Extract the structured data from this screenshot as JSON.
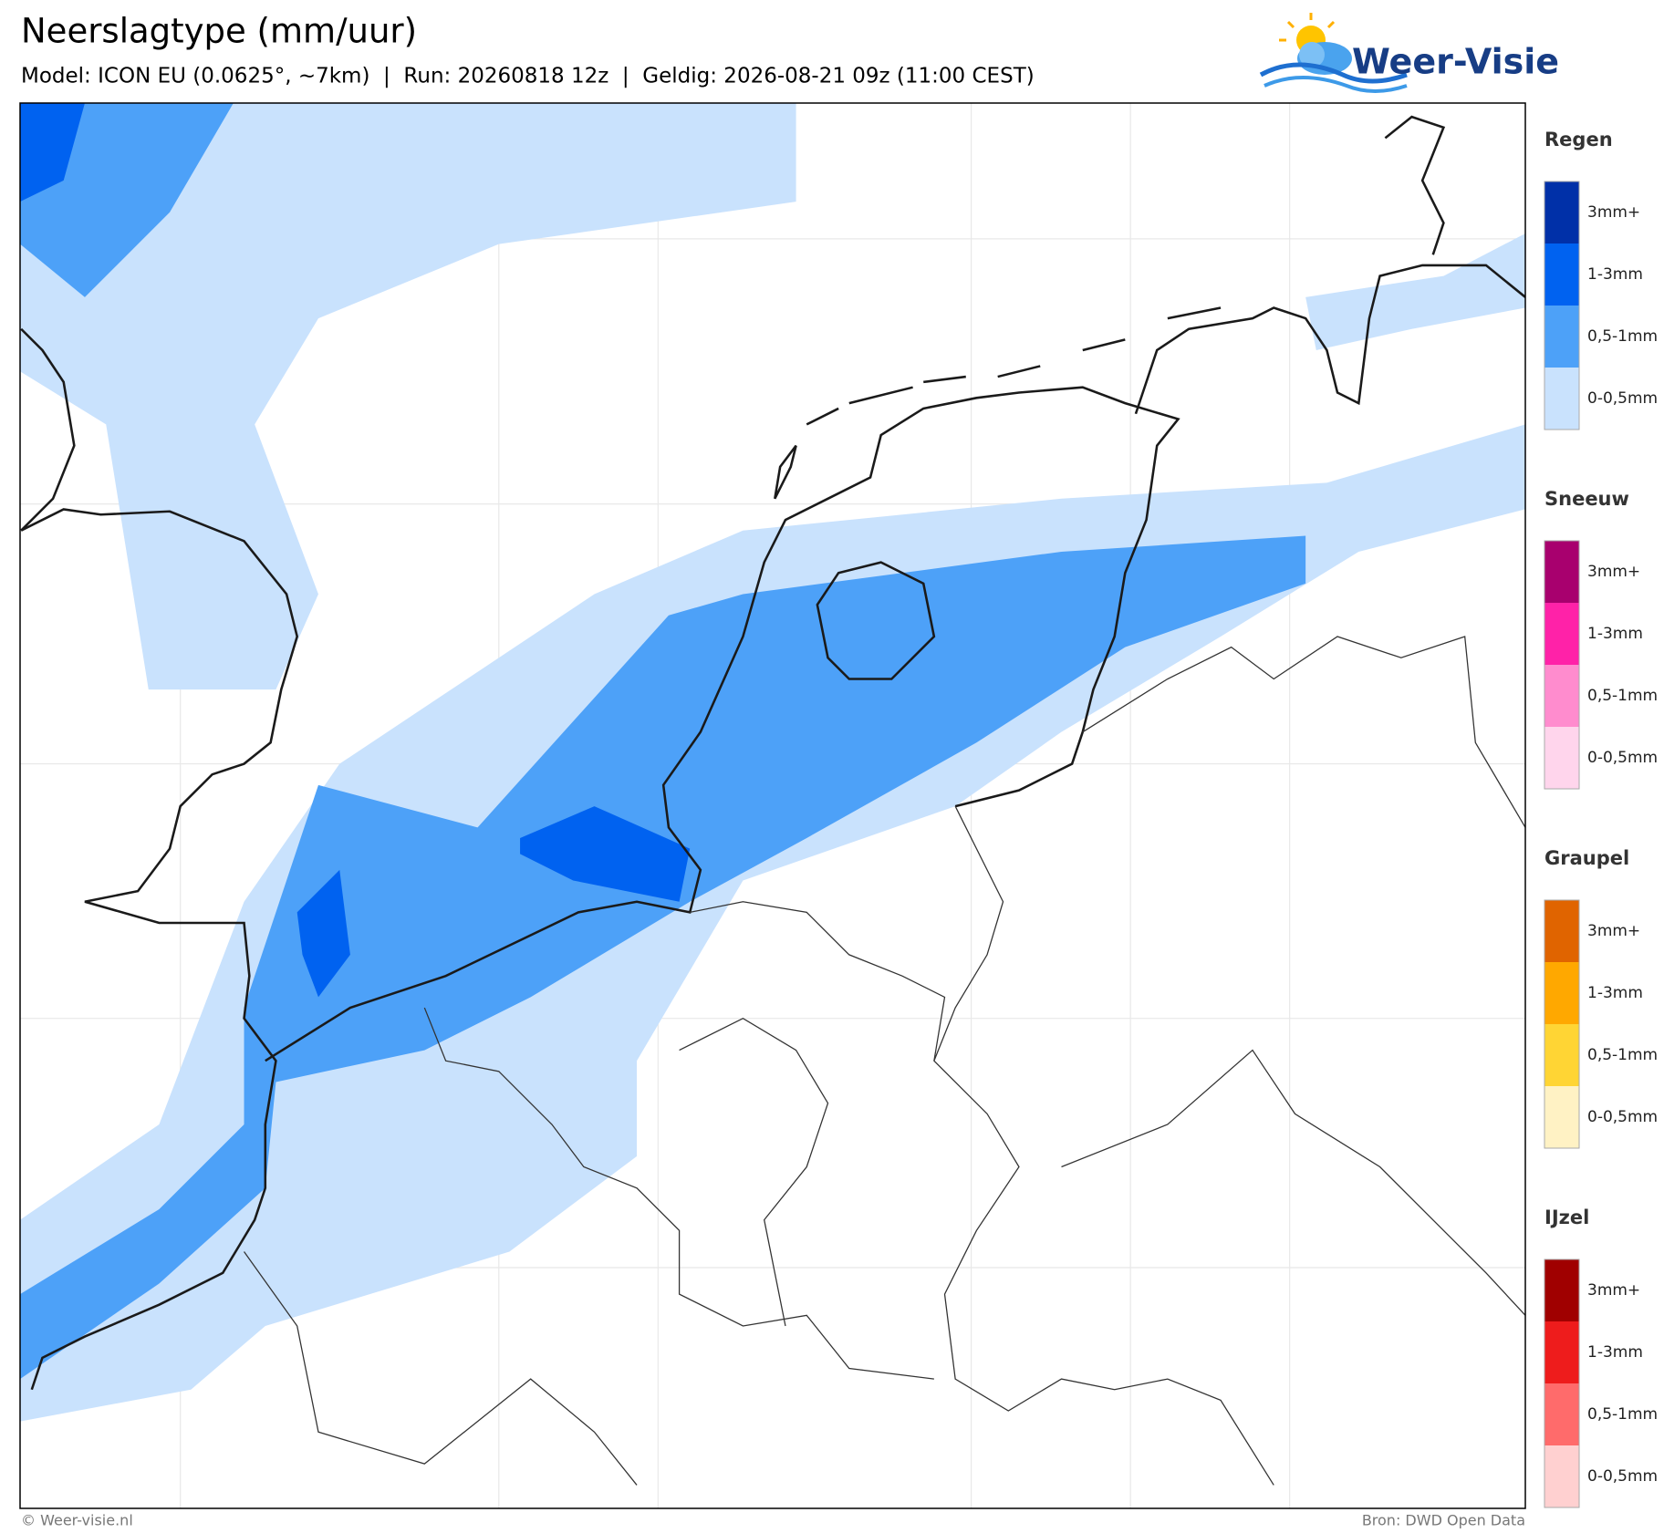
{
  "header": {
    "title": "Neerslagtype (mm/uur)",
    "subtitle": "Model: ICON EU (0.0625°, ~7km)  |  Run: 20260818 12z  |  Geldig: 2026-08-21 09z (11:00 CEST)"
  },
  "logo": {
    "text": "Weer-Visie"
  },
  "legend": [
    {
      "title": "Regen",
      "items": [
        {
          "label": "3mm+",
          "color": "#0030a8"
        },
        {
          "label": "1-3mm",
          "color": "#0062f0"
        },
        {
          "label": "0,5-1mm",
          "color": "#4da1f8"
        },
        {
          "label": "0-0,5mm",
          "color": "#c9e2fd"
        }
      ]
    },
    {
      "title": "Sneeuw",
      "items": [
        {
          "label": "3mm+",
          "color": "#a8006e"
        },
        {
          "label": "1-3mm",
          "color": "#ff22a8"
        },
        {
          "label": "0,5-1mm",
          "color": "#ff8cce"
        },
        {
          "label": "0-0,5mm",
          "color": "#ffd5ec"
        }
      ]
    },
    {
      "title": "Graupel",
      "items": [
        {
          "label": "3mm+",
          "color": "#e06400"
        },
        {
          "label": "1-3mm",
          "color": "#ffa800"
        },
        {
          "label": "0,5-1mm",
          "color": "#ffd534"
        },
        {
          "label": "0-0,5mm",
          "color": "#fff2c4"
        }
      ]
    },
    {
      "title": "IJzel",
      "items": [
        {
          "label": "3mm+",
          "color": "#a00000"
        },
        {
          "label": "1-3mm",
          "color": "#ee1c1c"
        },
        {
          "label": "0,5-1mm",
          "color": "#ff6b6b"
        },
        {
          "label": "0-0,5mm",
          "color": "#ffd0d0"
        }
      ]
    }
  ],
  "footer": {
    "left": "© Weer-visie.nl",
    "right": "Bron: DWD Open Data"
  }
}
